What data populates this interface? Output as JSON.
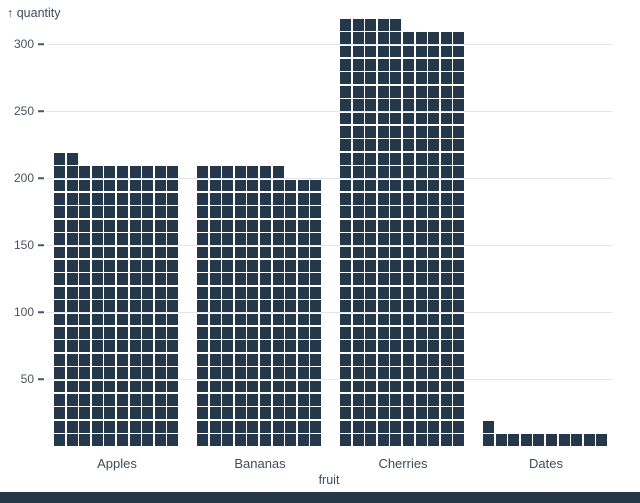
{
  "chart_data": {
    "type": "bar",
    "subtype": "waffle",
    "title": "",
    "xlabel": "fruit",
    "ylabel": "quantity",
    "y_axis_label_display": "↑ quantity",
    "categories": [
      "Apples",
      "Bananas",
      "Cherries",
      "Dates"
    ],
    "values": [
      212,
      207,
      315,
      11
    ],
    "unit_per_cell": 1,
    "cells_per_row": 10,
    "units_per_row": 10,
    "y_ticks": [
      50,
      100,
      150,
      200,
      250,
      300
    ],
    "ylim": [
      0,
      320
    ],
    "grid": true,
    "legend": "none",
    "colors": {
      "cell": "#253849",
      "grid": "#e4e7ea",
      "axis_text": "#414c59",
      "tick": "#4a5360",
      "background": "#ffffff",
      "bottom_bar": "#253849"
    }
  }
}
